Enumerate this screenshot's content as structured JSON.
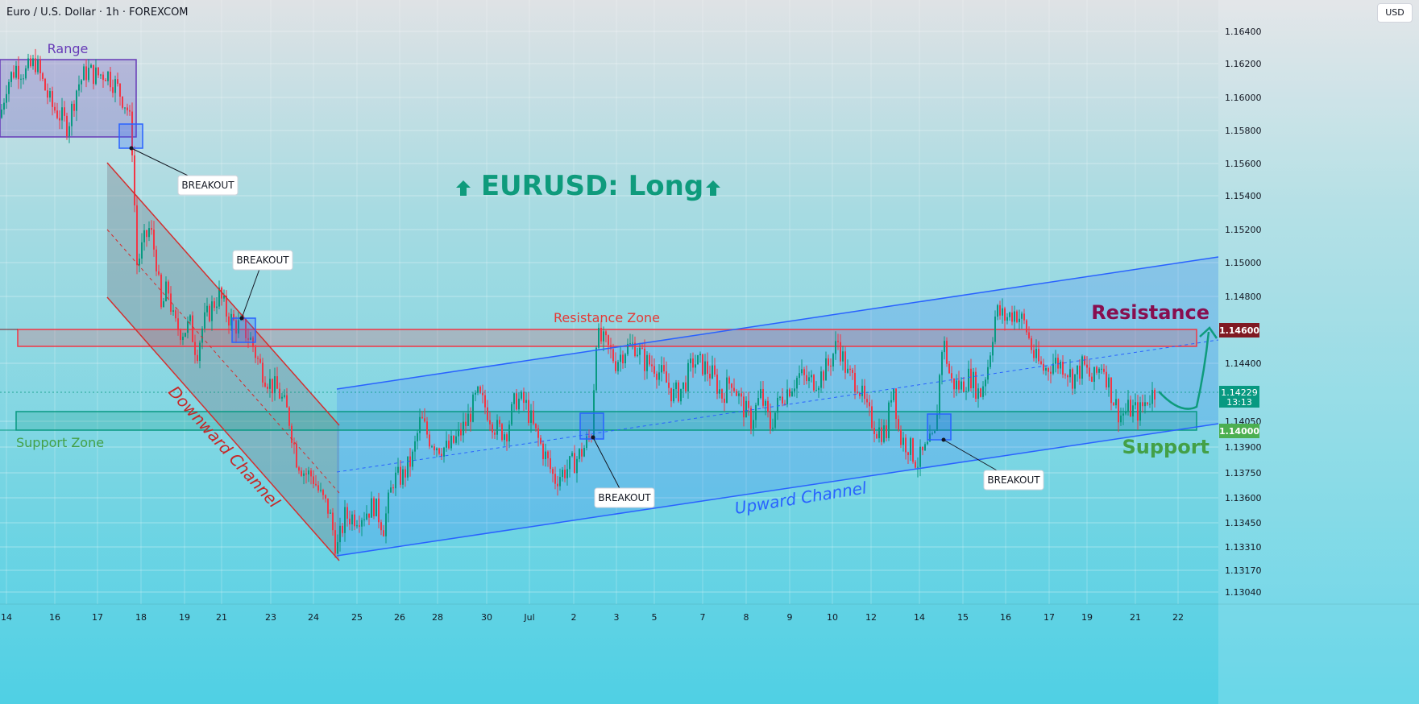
{
  "header": {
    "symbol_title": "Euro / U.S. Dollar · 1h · FOREXCOM",
    "currency": "USD"
  },
  "colors": {
    "up_candle": "#089981",
    "down_candle": "#f23645",
    "channel_blue": "#2962ff",
    "zone_red": "#f23645",
    "zone_green": "#089981",
    "range_purple": "#673ab7",
    "title_teal": "#0e9b7c",
    "resistance_label": "#880e4f",
    "support_label": "#43a047"
  },
  "annotations": {
    "headline": "EURUSD: Long",
    "range": "Range",
    "resistance_zone": "Resistance Zone",
    "support_zone": "Support Zone",
    "resistance": "Resistance",
    "support": "Support",
    "downward_channel": "Downward Channel",
    "upward_channel": "Upward Channel",
    "breakout_1": "BREAKOUT",
    "breakout_2": "BREAKOUT",
    "breakout_3": "BREAKOUT",
    "breakout_4": "BREAKOUT"
  },
  "price_tags": {
    "resistance": "1.14600",
    "current": "1.14229",
    "countdown": "13:13",
    "support": "1.14000"
  },
  "chart_data": {
    "type": "candlestick",
    "y_ticks": [
      "1.16400",
      "1.16200",
      "1.16000",
      "1.15800",
      "1.15600",
      "1.15400",
      "1.15200",
      "1.15000",
      "1.14800",
      "1.14400",
      "1.14050",
      "1.13900",
      "1.13750",
      "1.13600",
      "1.13450",
      "1.13310",
      "1.13170",
      "1.13040"
    ],
    "x_ticks": [
      "14",
      "16",
      "17",
      "18",
      "19",
      "21",
      "23",
      "24",
      "25",
      "26",
      "28",
      "30",
      "Jul",
      "2",
      "3",
      "5",
      "7",
      "8",
      "9",
      "10",
      "12",
      "14",
      "15",
      "16",
      "17",
      "19",
      "21",
      "22"
    ],
    "y_range": [
      1.1296,
      1.1655
    ],
    "levels": {
      "resistance": 1.146,
      "support": 1.14,
      "current": 1.14229
    },
    "price_path": [
      [
        0,
        1.1585
      ],
      [
        8,
        1.1605
      ],
      [
        20,
        1.1615
      ],
      [
        32,
        1.1612
      ],
      [
        44,
        1.1618
      ],
      [
        56,
        1.1602
      ],
      [
        64,
        1.1592
      ],
      [
        72,
        1.1588
      ],
      [
        84,
        1.158
      ],
      [
        96,
        1.1604
      ],
      [
        108,
        1.1613
      ],
      [
        120,
        1.161
      ],
      [
        132,
        1.1612
      ],
      [
        144,
        1.1604
      ],
      [
        154,
        1.1595
      ],
      [
        160,
        1.1588
      ],
      [
        164,
        1.1568
      ],
      [
        170,
        1.1498
      ],
      [
        178,
        1.151
      ],
      [
        186,
        1.152
      ],
      [
        194,
        1.15
      ],
      [
        200,
        1.147
      ],
      [
        208,
        1.1485
      ],
      [
        216,
        1.1462
      ],
      [
        226,
        1.1458
      ],
      [
        236,
        1.1462
      ],
      [
        244,
        1.1445
      ],
      [
        252,
        1.1462
      ],
      [
        262,
        1.1472
      ],
      [
        272,
        1.148
      ],
      [
        282,
        1.1468
      ],
      [
        292,
        1.1462
      ],
      [
        302,
        1.146
      ],
      [
        312,
        1.1452
      ],
      [
        322,
        1.1438
      ],
      [
        334,
        1.1428
      ],
      [
        346,
        1.1422
      ],
      [
        358,
        1.1408
      ],
      [
        368,
        1.1383
      ],
      [
        378,
        1.1374
      ],
      [
        388,
        1.1372
      ],
      [
        398,
        1.136
      ],
      [
        408,
        1.1352
      ],
      [
        418,
        1.1328
      ],
      [
        428,
        1.1348
      ],
      [
        440,
        1.1348
      ],
      [
        452,
        1.135
      ],
      [
        464,
        1.1355
      ],
      [
        476,
        1.1342
      ],
      [
        488,
        1.137
      ],
      [
        500,
        1.1372
      ],
      [
        512,
        1.1383
      ],
      [
        522,
        1.1406
      ],
      [
        532,
        1.1395
      ],
      [
        544,
        1.139
      ],
      [
        556,
        1.1388
      ],
      [
        568,
        1.1395
      ],
      [
        580,
        1.1405
      ],
      [
        592,
        1.142
      ],
      [
        604,
        1.1412
      ],
      [
        616,
        1.14
      ],
      [
        628,
        1.1398
      ],
      [
        640,
        1.1418
      ],
      [
        652,
        1.1415
      ],
      [
        664,
        1.1398
      ],
      [
        676,
        1.1385
      ],
      [
        688,
        1.137
      ],
      [
        700,
        1.1375
      ],
      [
        712,
        1.138
      ],
      [
        724,
        1.1388
      ],
      [
        734,
        1.1398
      ],
      [
        740,
        1.1455
      ],
      [
        752,
        1.145
      ],
      [
        764,
        1.144
      ],
      [
        776,
        1.1448
      ],
      [
        788,
        1.145
      ],
      [
        800,
        1.144
      ],
      [
        812,
        1.1438
      ],
      [
        824,
        1.143
      ],
      [
        836,
        1.142
      ],
      [
        848,
        1.1425
      ],
      [
        860,
        1.144
      ],
      [
        872,
        1.1438
      ],
      [
        884,
        1.1432
      ],
      [
        896,
        1.142
      ],
      [
        908,
        1.143
      ],
      [
        920,
        1.1415
      ],
      [
        932,
        1.1405
      ],
      [
        944,
        1.142
      ],
      [
        956,
        1.1402
      ],
      [
        968,
        1.1418
      ],
      [
        980,
        1.1425
      ],
      [
        992,
        1.1432
      ],
      [
        1004,
        1.1428
      ],
      [
        1016,
        1.143
      ],
      [
        1028,
        1.1438
      ],
      [
        1040,
        1.1452
      ],
      [
        1052,
        1.1432
      ],
      [
        1064,
        1.1428
      ],
      [
        1076,
        1.141
      ],
      [
        1088,
        1.14
      ],
      [
        1100,
        1.1398
      ],
      [
        1108,
        1.143
      ],
      [
        1116,
        1.1395
      ],
      [
        1128,
        1.139
      ],
      [
        1138,
        1.138
      ],
      [
        1150,
        1.1388
      ],
      [
        1160,
        1.1395
      ],
      [
        1170,
        1.1455
      ],
      [
        1180,
        1.1428
      ],
      [
        1192,
        1.1425
      ],
      [
        1204,
        1.1432
      ],
      [
        1216,
        1.142
      ],
      [
        1226,
        1.1438
      ],
      [
        1236,
        1.147
      ],
      [
        1248,
        1.1466
      ],
      [
        1260,
        1.147
      ],
      [
        1272,
        1.1462
      ],
      [
        1284,
        1.1442
      ],
      [
        1296,
        1.1435
      ],
      [
        1308,
        1.144
      ],
      [
        1320,
        1.1438
      ],
      [
        1332,
        1.143
      ],
      [
        1344,
        1.1438
      ],
      [
        1356,
        1.1428
      ],
      [
        1368,
        1.144
      ],
      [
        1380,
        1.142
      ],
      [
        1390,
        1.1408
      ],
      [
        1402,
        1.1412
      ],
      [
        1414,
        1.141
      ],
      [
        1424,
        1.1418
      ],
      [
        1434,
        1.1423
      ]
    ]
  }
}
